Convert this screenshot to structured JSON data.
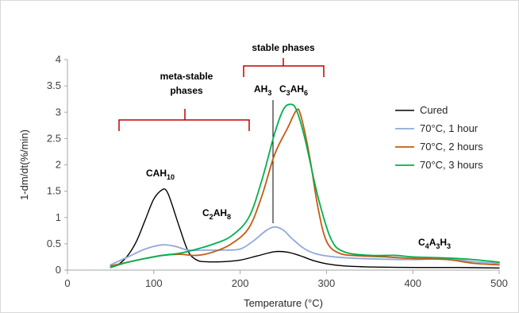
{
  "chart_data": {
    "type": "line",
    "title": "",
    "xlabel": "Temperature (°C)",
    "ylabel": "1-dm/dt(%/min)",
    "xlim": [
      0,
      500
    ],
    "ylim": [
      0,
      4
    ],
    "x_ticks": [
      0,
      100,
      200,
      300,
      400,
      500
    ],
    "y_ticks": [
      0,
      0.5,
      1,
      1.5,
      2,
      2.5,
      3,
      3.5,
      4
    ],
    "x_tick_labels": [
      "0",
      "100",
      "200",
      "300",
      "400",
      "500"
    ],
    "y_tick_labels": [
      "0",
      "0.5",
      "1",
      "1.5",
      "2",
      "2.5",
      "3",
      "3.5",
      "4"
    ],
    "legend_position": "right",
    "grid": false,
    "series": [
      {
        "name": "Cured",
        "color": "#000000",
        "points": [
          [
            50,
            0.05
          ],
          [
            60,
            0.12
          ],
          [
            70,
            0.28
          ],
          [
            80,
            0.55
          ],
          [
            90,
            0.95
          ],
          [
            100,
            1.35
          ],
          [
            110,
            1.53
          ],
          [
            115,
            1.5
          ],
          [
            120,
            1.3
          ],
          [
            130,
            0.8
          ],
          [
            140,
            0.35
          ],
          [
            150,
            0.19
          ],
          [
            160,
            0.16
          ],
          [
            180,
            0.16
          ],
          [
            200,
            0.19
          ],
          [
            220,
            0.27
          ],
          [
            240,
            0.35
          ],
          [
            255,
            0.34
          ],
          [
            270,
            0.27
          ],
          [
            285,
            0.18
          ],
          [
            300,
            0.12
          ],
          [
            320,
            0.08
          ],
          [
            350,
            0.06
          ],
          [
            400,
            0.05
          ],
          [
            450,
            0.05
          ],
          [
            500,
            0.04
          ]
        ]
      },
      {
        "name": "70°C, 1 hour",
        "color": "#8faadc",
        "points": [
          [
            50,
            0.1
          ],
          [
            70,
            0.25
          ],
          [
            90,
            0.4
          ],
          [
            110,
            0.48
          ],
          [
            125,
            0.45
          ],
          [
            140,
            0.38
          ],
          [
            160,
            0.38
          ],
          [
            180,
            0.38
          ],
          [
            200,
            0.4
          ],
          [
            215,
            0.55
          ],
          [
            230,
            0.75
          ],
          [
            240,
            0.82
          ],
          [
            250,
            0.76
          ],
          [
            260,
            0.6
          ],
          [
            275,
            0.4
          ],
          [
            290,
            0.3
          ],
          [
            310,
            0.25
          ],
          [
            340,
            0.22
          ],
          [
            400,
            0.2
          ],
          [
            440,
            0.22
          ],
          [
            470,
            0.16
          ],
          [
            500,
            0.13
          ]
        ]
      },
      {
        "name": "70°C, 2 hours",
        "color": "#c55a11",
        "points": [
          [
            50,
            0.08
          ],
          [
            70,
            0.15
          ],
          [
            90,
            0.22
          ],
          [
            110,
            0.28
          ],
          [
            130,
            0.3
          ],
          [
            150,
            0.28
          ],
          [
            170,
            0.35
          ],
          [
            190,
            0.5
          ],
          [
            210,
            0.8
          ],
          [
            225,
            1.4
          ],
          [
            240,
            2.2
          ],
          [
            255,
            2.7
          ],
          [
            265,
            3.03
          ],
          [
            270,
            2.95
          ],
          [
            280,
            2.2
          ],
          [
            290,
            1.2
          ],
          [
            300,
            0.55
          ],
          [
            315,
            0.32
          ],
          [
            340,
            0.27
          ],
          [
            370,
            0.25
          ],
          [
            400,
            0.22
          ],
          [
            440,
            0.2
          ],
          [
            470,
            0.13
          ],
          [
            500,
            0.1
          ]
        ]
      },
      {
        "name": "70°C, 3 hours",
        "color": "#00b050",
        "points": [
          [
            50,
            0.05
          ],
          [
            70,
            0.15
          ],
          [
            90,
            0.22
          ],
          [
            110,
            0.28
          ],
          [
            130,
            0.32
          ],
          [
            150,
            0.4
          ],
          [
            170,
            0.5
          ],
          [
            190,
            0.65
          ],
          [
            210,
            1.0
          ],
          [
            225,
            1.7
          ],
          [
            240,
            2.6
          ],
          [
            250,
            3.05
          ],
          [
            258,
            3.15
          ],
          [
            265,
            3.05
          ],
          [
            275,
            2.5
          ],
          [
            290,
            1.4
          ],
          [
            305,
            0.6
          ],
          [
            320,
            0.35
          ],
          [
            350,
            0.28
          ],
          [
            380,
            0.28
          ],
          [
            400,
            0.25
          ],
          [
            440,
            0.23
          ],
          [
            470,
            0.2
          ],
          [
            500,
            0.15
          ]
        ]
      }
    ],
    "annotations": {
      "meta_stable_line1": "meta-stable",
      "meta_stable_line2": "phases",
      "stable_phases": "stable phases",
      "cah10_base": "CAH",
      "cah10_sub": "10",
      "c2ah8_c": "C",
      "c2ah8_2": "2",
      "c2ah8_ah": "AH",
      "c2ah8_8": "8",
      "ah3_base": "AH",
      "ah3_sub": "3",
      "c3ah6_c": "C",
      "c3ah6_3": "3",
      "c3ah6_ah": "AH",
      "c3ah6_6": "6",
      "c4a3h3_c": "C",
      "c4a3h3_4": "4",
      "c4a3h3_a": "A",
      "c4a3h3_3a": "3",
      "c4a3h3_h": "H",
      "c4a3h3_3b": "3"
    }
  }
}
